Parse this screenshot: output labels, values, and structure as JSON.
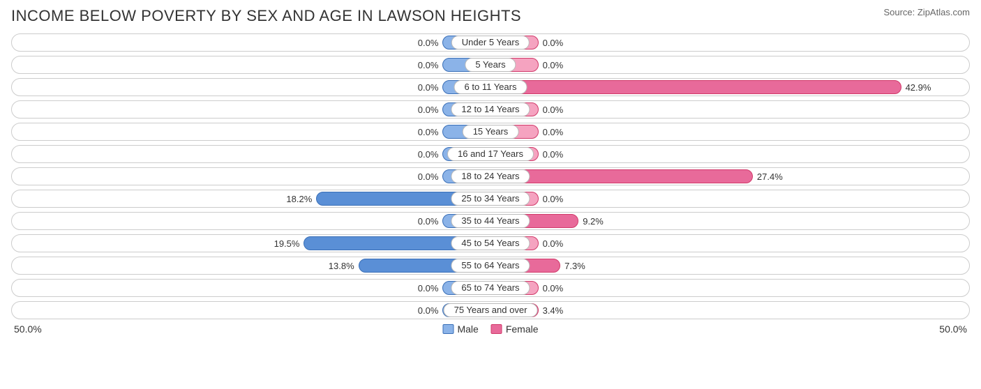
{
  "title": "INCOME BELOW POVERTY BY SEX AND AGE IN LAWSON HEIGHTS",
  "source": "Source: ZipAtlas.com",
  "axis_max": 50.0,
  "axis_label_left": "50.0%",
  "axis_label_right": "50.0%",
  "min_bar_pct": 10.0,
  "colors": {
    "male_fill": "#8bb3e8",
    "male_border": "#3a6fb7",
    "male_full_fill": "#5a8fd6",
    "female_fill": "#f5a3c0",
    "female_border": "#d13a6a",
    "female_full_fill": "#e86a9a",
    "row_border": "#cccccc",
    "text": "#333333",
    "bg": "#ffffff"
  },
  "legend": {
    "male": "Male",
    "female": "Female"
  },
  "rows": [
    {
      "label": "Under 5 Years",
      "male": 0.0,
      "female": 0.0
    },
    {
      "label": "5 Years",
      "male": 0.0,
      "female": 0.0
    },
    {
      "label": "6 to 11 Years",
      "male": 0.0,
      "female": 42.9
    },
    {
      "label": "12 to 14 Years",
      "male": 0.0,
      "female": 0.0
    },
    {
      "label": "15 Years",
      "male": 0.0,
      "female": 0.0
    },
    {
      "label": "16 and 17 Years",
      "male": 0.0,
      "female": 0.0
    },
    {
      "label": "18 to 24 Years",
      "male": 0.0,
      "female": 27.4
    },
    {
      "label": "25 to 34 Years",
      "male": 18.2,
      "female": 0.0
    },
    {
      "label": "35 to 44 Years",
      "male": 0.0,
      "female": 9.2
    },
    {
      "label": "45 to 54 Years",
      "male": 19.5,
      "female": 0.0
    },
    {
      "label": "55 to 64 Years",
      "male": 13.8,
      "female": 7.3
    },
    {
      "label": "65 to 74 Years",
      "male": 0.0,
      "female": 0.0
    },
    {
      "label": "75 Years and over",
      "male": 0.0,
      "female": 3.4
    }
  ]
}
